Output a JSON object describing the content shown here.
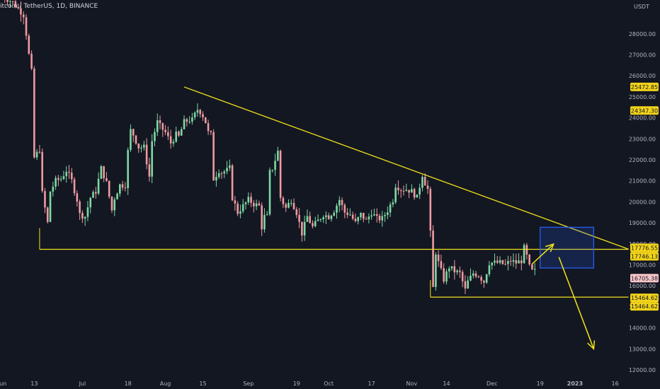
{
  "header": {
    "symbol_line": "itcoin / TetherUS, 1D, BINANCE",
    "currency": "USDT"
  },
  "colors": {
    "background": "#131722",
    "up_candle": "#7dd9a3",
    "down_candle": "#ef9aa0",
    "trendline": "#f2e21a",
    "box": "#2962ff",
    "axis_text": "#b2b5be",
    "price_badge": "#f2d31a",
    "last_price_badge": "#f7c6c9"
  },
  "chart_data": {
    "type": "candlestick",
    "y_axis": {
      "min": 11800,
      "max": 29300,
      "scale": "linear",
      "ticks": [
        12000,
        13000,
        14000,
        15000,
        16000,
        17000,
        18000,
        19000,
        20000,
        21000,
        22000,
        23000,
        24000,
        25000,
        26000,
        27000,
        28000
      ],
      "tick_labels": [
        "12000.00",
        "13000.00",
        "14000.00",
        "15000.00",
        "16000.00",
        "17000.00",
        "18000.00",
        "19000.00",
        "20000.00",
        "21000.00",
        "22000.00",
        "23000.00",
        "24000.00",
        "25000.00",
        "26000.00",
        "27000.00",
        "28000.00"
      ]
    },
    "x_axis": {
      "start_date": "2022-06-01",
      "end_date": "2023-01-21",
      "ticks": [
        {
          "label": "Jun",
          "date": "2022-06-01"
        },
        {
          "label": "13",
          "date": "2022-06-13"
        },
        {
          "label": "Jul",
          "date": "2022-07-01"
        },
        {
          "label": "18",
          "date": "2022-07-18"
        },
        {
          "label": "Aug",
          "date": "2022-08-01"
        },
        {
          "label": "15",
          "date": "2022-08-15"
        },
        {
          "label": "Sep",
          "date": "2022-09-01"
        },
        {
          "label": "19",
          "date": "2022-09-19"
        },
        {
          "label": "Oct",
          "date": "2022-10-01"
        },
        {
          "label": "17",
          "date": "2022-10-17"
        },
        {
          "label": "Nov",
          "date": "2022-11-01"
        },
        {
          "label": "14",
          "date": "2022-11-14"
        },
        {
          "label": "Dec",
          "date": "2022-12-01"
        },
        {
          "label": "19",
          "date": "2022-12-19"
        },
        {
          "label": "2023",
          "date": "2023-01-01"
        },
        {
          "label": "16",
          "date": "2023-01-16"
        }
      ]
    },
    "close_path": [
      [
        "2022-06-01",
        29800
      ],
      [
        "2022-06-05",
        29500
      ],
      [
        "2022-06-09",
        28900
      ],
      [
        "2022-06-10",
        28000
      ],
      [
        "2022-06-11",
        27000
      ],
      [
        "2022-06-12",
        26200
      ],
      [
        "2022-06-13",
        22100
      ],
      [
        "2022-06-14",
        22300
      ],
      [
        "2022-06-15",
        22500
      ],
      [
        "2022-06-16",
        20400
      ],
      [
        "2022-06-18",
        19000
      ],
      [
        "2022-06-19",
        20500
      ],
      [
        "2022-06-21",
        21000
      ],
      [
        "2022-06-23",
        21100
      ],
      [
        "2022-06-25",
        21500
      ],
      [
        "2022-06-27",
        21000
      ],
      [
        "2022-06-29",
        20100
      ],
      [
        "2022-06-30",
        19400
      ],
      [
        "2022-07-02",
        19300
      ],
      [
        "2022-07-04",
        20200
      ],
      [
        "2022-07-06",
        20500
      ],
      [
        "2022-07-08",
        21600
      ],
      [
        "2022-07-10",
        20900
      ],
      [
        "2022-07-12",
        19600
      ],
      [
        "2022-07-13",
        20200
      ],
      [
        "2022-07-15",
        20800
      ],
      [
        "2022-07-17",
        20800
      ],
      [
        "2022-07-18",
        22400
      ],
      [
        "2022-07-19",
        23400
      ],
      [
        "2022-07-20",
        23200
      ],
      [
        "2022-07-22",
        22600
      ],
      [
        "2022-07-24",
        22600
      ],
      [
        "2022-07-26",
        21200
      ],
      [
        "2022-07-27",
        22900
      ],
      [
        "2022-07-29",
        23800
      ],
      [
        "2022-07-30",
        23600
      ],
      [
        "2022-08-01",
        23300
      ],
      [
        "2022-08-03",
        22800
      ],
      [
        "2022-08-05",
        23200
      ],
      [
        "2022-08-06",
        23100
      ],
      [
        "2022-08-08",
        23800
      ],
      [
        "2022-08-10",
        23900
      ],
      [
        "2022-08-11",
        23900
      ],
      [
        "2022-08-13",
        24400
      ],
      [
        "2022-08-14",
        24300
      ],
      [
        "2022-08-15",
        24100
      ],
      [
        "2022-08-16",
        23800
      ],
      [
        "2022-08-17",
        23300
      ],
      [
        "2022-08-18",
        23200
      ],
      [
        "2022-08-19",
        21100
      ],
      [
        "2022-08-21",
        21500
      ],
      [
        "2022-08-22",
        21400
      ],
      [
        "2022-08-24",
        21500
      ],
      [
        "2022-08-25",
        21600
      ],
      [
        "2022-08-26",
        20200
      ],
      [
        "2022-08-28",
        19500
      ],
      [
        "2022-08-30",
        19800
      ],
      [
        "2022-09-01",
        20100
      ],
      [
        "2022-09-03",
        19900
      ],
      [
        "2022-09-05",
        19800
      ],
      [
        "2022-09-06",
        18800
      ],
      [
        "2022-09-07",
        19300
      ],
      [
        "2022-09-08",
        19300
      ],
      [
        "2022-09-09",
        21400
      ],
      [
        "2022-09-10",
        21600
      ],
      [
        "2022-09-12",
        22400
      ],
      [
        "2022-09-13",
        20200
      ],
      [
        "2022-09-15",
        19700
      ],
      [
        "2022-09-17",
        20100
      ],
      [
        "2022-09-19",
        19500
      ],
      [
        "2022-09-21",
        18500
      ],
      [
        "2022-09-23",
        19300
      ],
      [
        "2022-09-25",
        18800
      ],
      [
        "2022-09-27",
        19100
      ],
      [
        "2022-09-29",
        19400
      ],
      [
        "2022-10-01",
        19300
      ],
      [
        "2022-10-03",
        19600
      ],
      [
        "2022-10-05",
        20100
      ],
      [
        "2022-10-07",
        19500
      ],
      [
        "2022-10-09",
        19400
      ],
      [
        "2022-10-11",
        19000
      ],
      [
        "2022-10-13",
        19400
      ],
      [
        "2022-10-15",
        19100
      ],
      [
        "2022-10-17",
        19500
      ],
      [
        "2022-10-19",
        19200
      ],
      [
        "2022-10-21",
        19200
      ],
      [
        "2022-10-23",
        19600
      ],
      [
        "2022-10-25",
        20100
      ],
      [
        "2022-10-26",
        20800
      ],
      [
        "2022-10-28",
        20600
      ],
      [
        "2022-10-30",
        20600
      ],
      [
        "2022-11-01",
        20500
      ],
      [
        "2022-11-03",
        20200
      ],
      [
        "2022-11-05",
        21300
      ],
      [
        "2022-11-06",
        20900
      ],
      [
        "2022-11-07",
        20600
      ],
      [
        "2022-11-08",
        18500
      ],
      [
        "2022-11-09",
        15900
      ],
      [
        "2022-11-10",
        17600
      ],
      [
        "2022-11-11",
        17100
      ],
      [
        "2022-11-13",
        16300
      ],
      [
        "2022-11-15",
        16900
      ],
      [
        "2022-11-17",
        16700
      ],
      [
        "2022-11-19",
        16600
      ],
      [
        "2022-11-21",
        15800
      ],
      [
        "2022-11-22",
        16200
      ],
      [
        "2022-11-24",
        16600
      ],
      [
        "2022-11-26",
        16500
      ],
      [
        "2022-11-28",
        16200
      ],
      [
        "2022-11-30",
        17100
      ],
      [
        "2022-12-02",
        17100
      ],
      [
        "2022-12-04",
        17100
      ],
      [
        "2022-12-06",
        17000
      ],
      [
        "2022-12-08",
        17200
      ],
      [
        "2022-12-10",
        17100
      ],
      [
        "2022-12-12",
        17200
      ],
      [
        "2022-12-13",
        17800
      ],
      [
        "2022-12-14",
        17400
      ],
      [
        "2022-12-15",
        16900
      ],
      [
        "2022-12-16",
        16700
      ],
      [
        "2022-12-17",
        16700
      ]
    ],
    "horizontal_levels": [
      {
        "value": 17776.55,
        "label": "17776.55"
      },
      {
        "value": 17746.13,
        "label": "17746.13"
      },
      {
        "value": 16705.38,
        "label": "16705.38"
      },
      {
        "value": 15464.62,
        "label": "15464.62"
      },
      {
        "value": 15464.62,
        "label": "15464.62"
      },
      {
        "value": 24347.3,
        "label": "24347.30"
      },
      {
        "value": 25472.85,
        "label": "25472.85"
      }
    ],
    "drawings": {
      "descending_trendline": {
        "from": [
          "2022-08-08",
          25470
        ],
        "to": [
          "2023-01-21",
          17750
        ]
      },
      "support_line": {
        "from": [
          "2022-06-15",
          17740
        ],
        "to": [
          "2023-01-21",
          17740
        ]
      },
      "support_line_lower": {
        "from": [
          "2022-11-08",
          15464
        ],
        "to": [
          "2023-01-21",
          15464
        ]
      },
      "target_box": {
        "from": [
          "2022-12-19",
          18790
        ],
        "to": [
          "2023-01-08",
          16850
        ]
      },
      "arrow_up": {
        "from": [
          "2022-12-16",
          17040
        ],
        "to": [
          "2022-12-24",
          17990
        ]
      },
      "arrow_down": {
        "from": [
          "2022-12-26",
          17370
        ],
        "to": [
          "2023-01-08",
          13000
        ]
      }
    }
  }
}
